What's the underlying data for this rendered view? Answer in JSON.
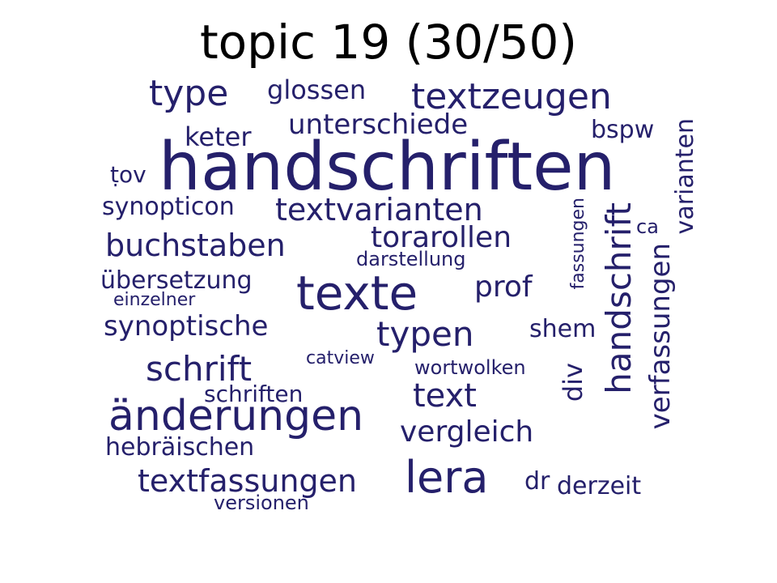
{
  "title": "topic 19 (30/50)",
  "word_color": "#25206b",
  "words": [
    {
      "text": "handschriften"
    },
    {
      "text": "texte"
    },
    {
      "text": "änderungen"
    },
    {
      "text": "lera"
    },
    {
      "text": "handschrift"
    },
    {
      "text": "textzeugen"
    },
    {
      "text": "textvarianten"
    },
    {
      "text": "typen"
    },
    {
      "text": "schrift"
    },
    {
      "text": "verfassungen"
    },
    {
      "text": "type"
    },
    {
      "text": "buchstaben"
    },
    {
      "text": "text"
    },
    {
      "text": "textfassungen"
    },
    {
      "text": "torarollen"
    },
    {
      "text": "vergleich"
    },
    {
      "text": "varianten"
    },
    {
      "text": "unterschiede"
    },
    {
      "text": "synoptische"
    },
    {
      "text": "prof"
    },
    {
      "text": "glossen"
    },
    {
      "text": "übersetzung"
    },
    {
      "text": "hebräischen"
    },
    {
      "text": "synopticon"
    },
    {
      "text": "keter"
    },
    {
      "text": "bspw"
    },
    {
      "text": "schriften"
    },
    {
      "text": "div"
    },
    {
      "text": "dr"
    },
    {
      "text": "derzeit"
    },
    {
      "text": "shem"
    },
    {
      "text": "ṭov"
    },
    {
      "text": "wortwolken"
    },
    {
      "text": "catview"
    },
    {
      "text": "darstellung"
    },
    {
      "text": "fassungen"
    },
    {
      "text": "einzelner"
    },
    {
      "text": "versionen"
    },
    {
      "text": "ca"
    }
  ]
}
